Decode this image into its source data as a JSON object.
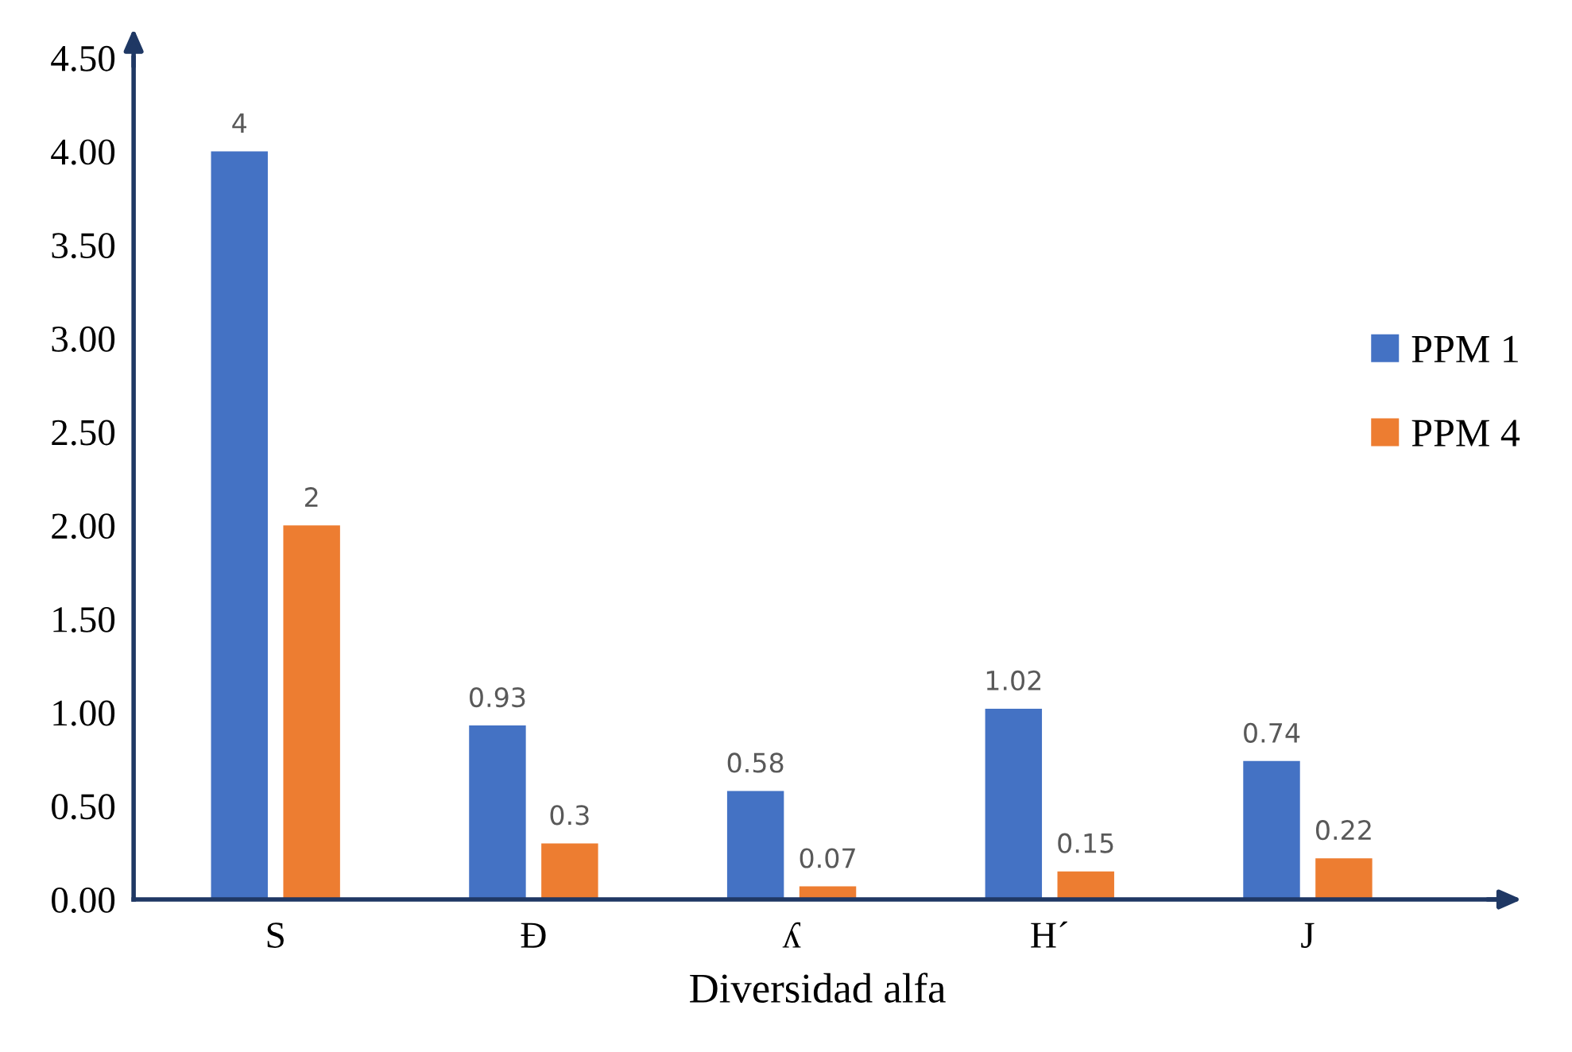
{
  "chart_data": {
    "type": "bar",
    "xlabel": "Diversidad alfa",
    "categories": [
      "S",
      "Đ",
      "ʎ",
      "H´",
      "J"
    ],
    "series": [
      {
        "name": "PPM 1",
        "color": "#4472c4",
        "values": [
          4,
          0.93,
          0.58,
          1.02,
          0.74
        ]
      },
      {
        "name": "PPM 4",
        "color": "#ed7d31",
        "values": [
          2,
          0.3,
          0.07,
          0.15,
          0.22
        ]
      }
    ],
    "ylim": [
      0,
      4.5
    ],
    "yticks": [
      {
        "value": 0,
        "label": "0.00"
      },
      {
        "value": 0.5,
        "label": "0.50"
      },
      {
        "value": 1,
        "label": "1.00"
      },
      {
        "value": 1.5,
        "label": "1.50"
      },
      {
        "value": 2,
        "label": "2.00"
      },
      {
        "value": 2.5,
        "label": "2.50"
      },
      {
        "value": 3,
        "label": "3.00"
      },
      {
        "value": 3.5,
        "label": "3.50"
      },
      {
        "value": 4,
        "label": "4.00"
      },
      {
        "value": 4.5,
        "label": "4.50"
      }
    ],
    "data_labels": true,
    "grid": false,
    "legend": "right"
  }
}
